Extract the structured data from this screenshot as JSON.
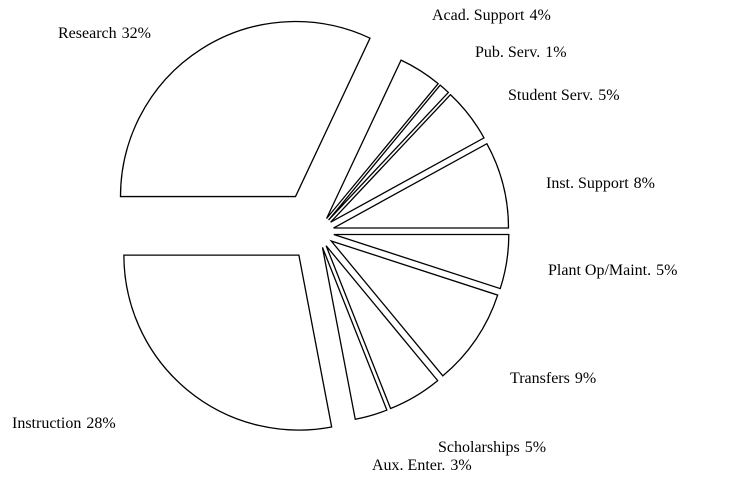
{
  "chart_data": {
    "type": "pie",
    "categories": [
      "Research",
      "Acad. Support",
      "Pub. Serv.",
      "Student Serv.",
      "Inst. Support",
      "Plant Op/Maint.",
      "Transfers",
      "Scholarships",
      "Aux. Enter.",
      "Instruction"
    ],
    "values": [
      32,
      4,
      1,
      5,
      8,
      5,
      9,
      5,
      3,
      28
    ],
    "value_labels": [
      "32%",
      "4%",
      "1%",
      "5%",
      "8%",
      "5%",
      "9%",
      "5%",
      "3%",
      "28%"
    ],
    "color": "#ffffff"
  }
}
